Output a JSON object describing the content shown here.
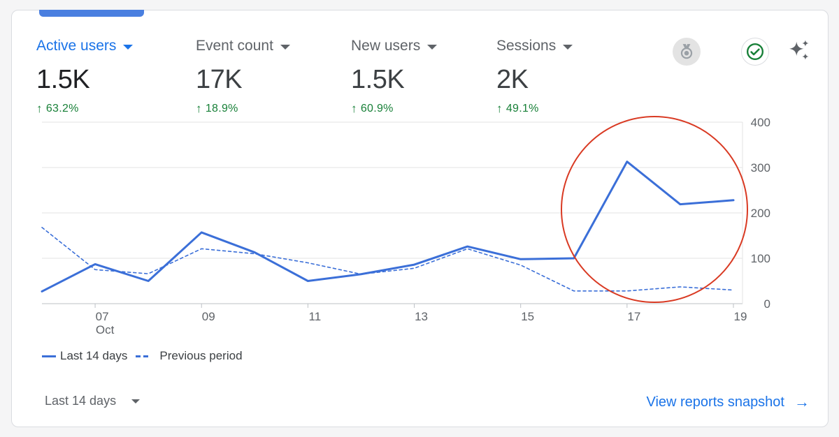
{
  "metrics": [
    {
      "label": "Active users",
      "value": "1.5K",
      "delta": "63.2%"
    },
    {
      "label": "Event count",
      "value": "17K",
      "delta": "18.9%"
    },
    {
      "label": "New users",
      "value": "1.5K",
      "delta": "60.9%"
    },
    {
      "label": "Sessions",
      "value": "2K",
      "delta": "49.1%"
    }
  ],
  "colors": {
    "accent": "#1a73e8",
    "series": "#3b6fd8",
    "positive": "#188038",
    "highlight": "#d93a23"
  },
  "icons": {
    "medal": "medal-icon",
    "check": "check-circle-icon",
    "sparkle": "sparkle-icon"
  },
  "chart_data": {
    "type": "line",
    "x": [
      6,
      7,
      8,
      9,
      10,
      11,
      12,
      13,
      14,
      15,
      16,
      17,
      18,
      19
    ],
    "x_tick_labels": [
      {
        "x": 7,
        "label": "07",
        "sublabel": "Oct"
      },
      {
        "x": 9,
        "label": "09"
      },
      {
        "x": 11,
        "label": "11"
      },
      {
        "x": 13,
        "label": "13"
      },
      {
        "x": 15,
        "label": "15"
      },
      {
        "x": 17,
        "label": "17"
      },
      {
        "x": 19,
        "label": "19"
      }
    ],
    "y_ticks": [
      0,
      100,
      200,
      300,
      400
    ],
    "ylim": [
      0,
      400
    ],
    "series": [
      {
        "name": "Last 14 days",
        "style": "solid",
        "values": [
          27,
          87,
          50,
          157,
          113,
          50,
          65,
          86,
          126,
          98,
          100,
          313,
          219,
          228
        ]
      },
      {
        "name": "Previous period",
        "style": "dashed",
        "values": [
          168,
          75,
          66,
          121,
          110,
          90,
          65,
          78,
          121,
          85,
          28,
          28,
          37,
          30
        ]
      }
    ],
    "annotation": "red circle highlighting spike at 17",
    "grid": true,
    "legend_position": "bottom-left"
  },
  "controls": {
    "date_range": "Last 14 days",
    "view_link": "View reports snapshot"
  }
}
